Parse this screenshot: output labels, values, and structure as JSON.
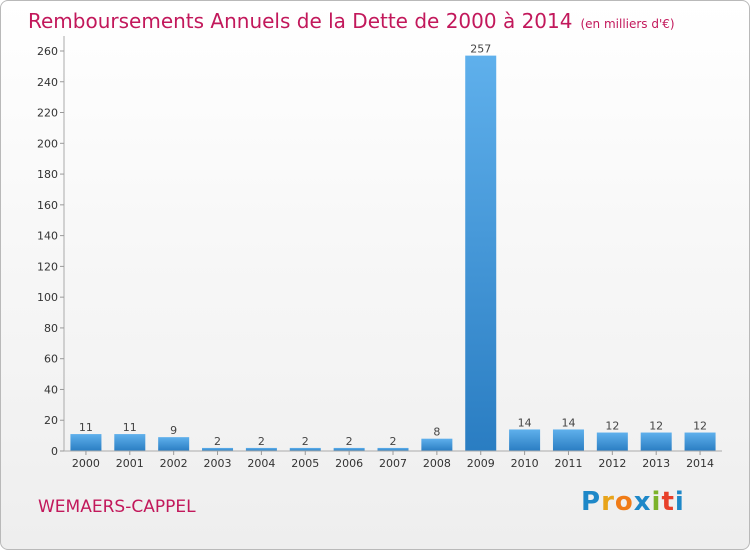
{
  "header": {
    "title": "Remboursements Annuels de la Dette de 2000 à 2014",
    "unit": "(en milliers d'€)"
  },
  "footer": {
    "commune": "WEMAERS-CAPPEL"
  },
  "logo": {
    "text": "Proxiti",
    "letters": [
      "P",
      "r",
      "o",
      "x",
      "i",
      "t",
      "i"
    ],
    "colors": [
      "#1e88c8",
      "#e8a41a",
      "#f07c18",
      "#1e88c8",
      "#7cb32a",
      "#e8402a",
      "#1e88c8"
    ]
  },
  "chart_data": {
    "type": "bar",
    "categories": [
      "2000",
      "2001",
      "2002",
      "2003",
      "2004",
      "2005",
      "2006",
      "2007",
      "2008",
      "2009",
      "2010",
      "2011",
      "2012",
      "2013",
      "2014"
    ],
    "values": [
      11,
      11,
      9,
      2,
      2,
      2,
      2,
      2,
      8,
      257,
      14,
      14,
      12,
      12,
      12
    ],
    "data_labels": [
      "11",
      "11",
      "9",
      "2",
      "2",
      "2",
      "2",
      "2",
      "8",
      "257",
      "14",
      "14",
      "12",
      "12",
      "12"
    ],
    "y_ticks": [
      "0",
      "20",
      "40",
      "60",
      "80",
      "100",
      "120",
      "140",
      "160",
      "180",
      "200",
      "220",
      "240",
      "260"
    ],
    "ylim": [
      0,
      260
    ],
    "grid": false,
    "bar_color": "#3a8fd8"
  }
}
